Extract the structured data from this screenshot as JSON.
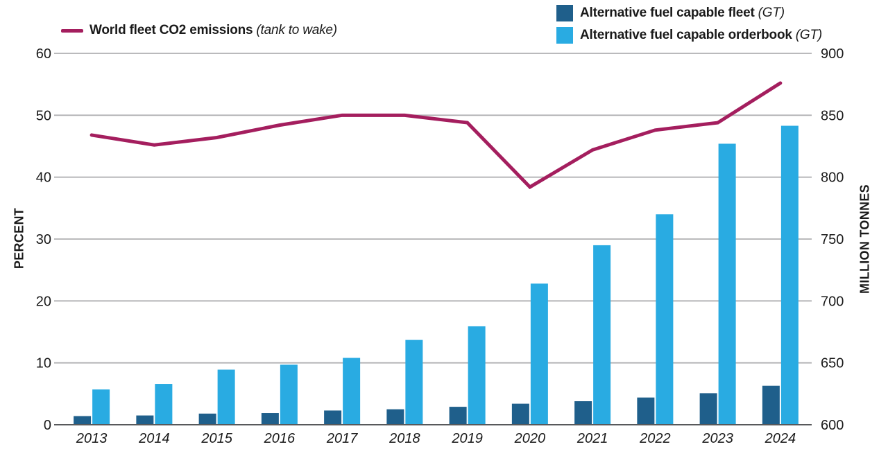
{
  "chart_data": {
    "type": "combo-bar-line",
    "categories": [
      "2013",
      "2014",
      "2015",
      "2016",
      "2017",
      "2018",
      "2019",
      "2020",
      "2021",
      "2022",
      "2023",
      "2024"
    ],
    "series": [
      {
        "name": "World fleet CO2 emissions",
        "suffix": "(tank to wake)",
        "type": "line",
        "axis": "right",
        "color": "#a41e5e",
        "values_million_tonnes": [
          834,
          826,
          832,
          842,
          850,
          850,
          844,
          792,
          822,
          838,
          844,
          876
        ]
      },
      {
        "name": "Alternative fuel capable fleet",
        "suffix": "(GT)",
        "type": "bar",
        "axis": "left",
        "color": "#1f5f8b",
        "values_percent": [
          1.4,
          1.5,
          1.8,
          1.9,
          2.3,
          2.5,
          2.9,
          3.4,
          3.8,
          4.4,
          5.1,
          6.3
        ]
      },
      {
        "name": "Alternative fuel capable orderbook",
        "suffix": "(GT)",
        "type": "bar",
        "axis": "left",
        "color": "#29abe2",
        "values_percent": [
          5.7,
          6.6,
          8.9,
          9.7,
          10.8,
          13.7,
          15.9,
          22.8,
          29.0,
          34.0,
          45.4,
          48.3
        ]
      }
    ],
    "left_axis": {
      "label": "PERCENT",
      "min": 0,
      "max": 60,
      "ticks": [
        0,
        10,
        20,
        30,
        40,
        50,
        60
      ]
    },
    "right_axis": {
      "label": "MILLION TONNES",
      "min": 600,
      "max": 900,
      "ticks": [
        600,
        650,
        700,
        750,
        800,
        850,
        900
      ]
    },
    "grid": "horizontal",
    "legend_position": "top",
    "colors": {
      "grid_line": "#b1b1b3",
      "axis_line": "#58595b",
      "tick_text": "#1a1a1a"
    }
  }
}
